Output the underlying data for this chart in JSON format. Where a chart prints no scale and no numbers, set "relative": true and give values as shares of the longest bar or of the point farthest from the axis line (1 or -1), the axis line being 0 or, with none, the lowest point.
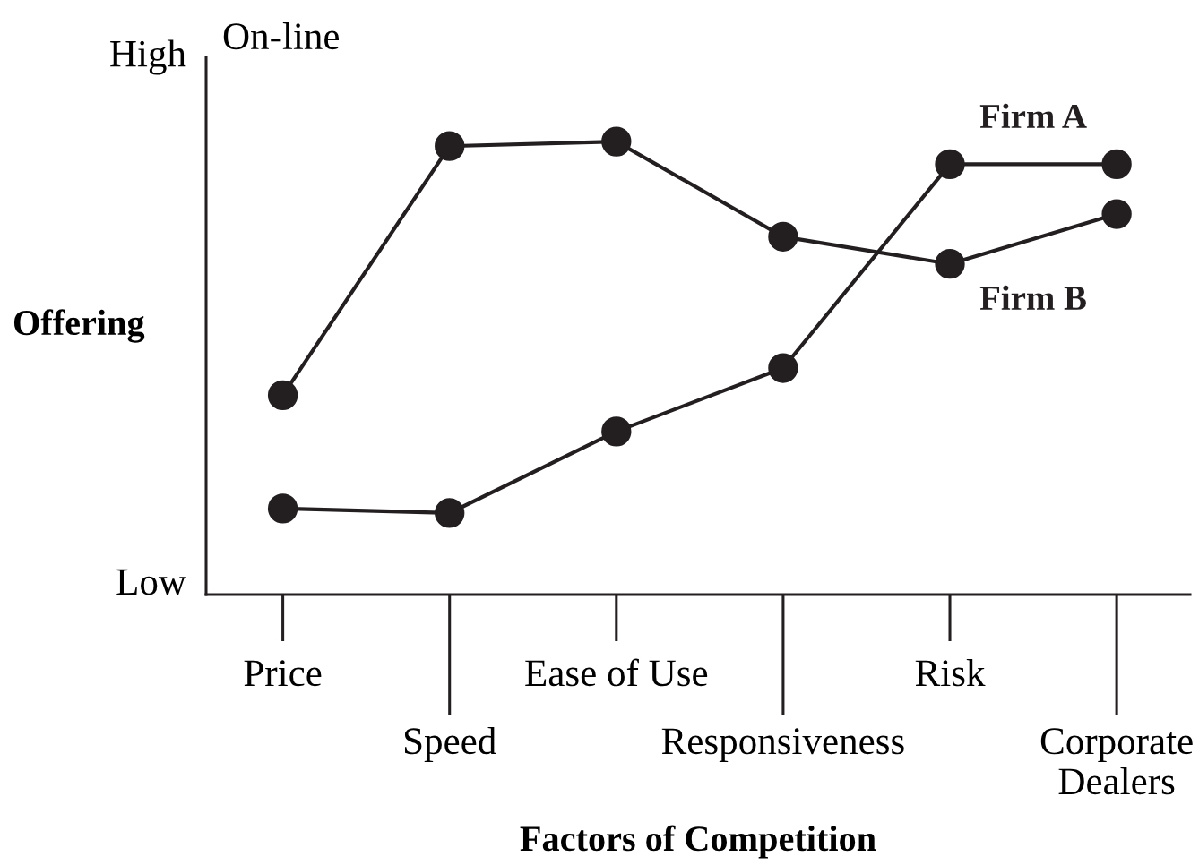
{
  "chart_data": {
    "type": "line",
    "title": "On-line",
    "xlabel": "Factors of Competition",
    "ylabel": "Offering",
    "categories": [
      "Price",
      "Speed",
      "Ease of Use",
      "Responsiveness",
      "Risk",
      "Corporate Dealers"
    ],
    "relative": true,
    "marker": "circle",
    "line_style": "solid",
    "series": [
      {
        "name": "Firm A",
        "color": "#231f20",
        "values": [
          0.19,
          0.18,
          0.36,
          0.5,
          0.95,
          0.95
        ]
      },
      {
        "name": "Firm B",
        "color": "#231f20",
        "values": [
          0.44,
          0.99,
          1,
          0.79,
          0.73,
          0.84
        ]
      }
    ],
    "annotations": [
      "High",
      "Low"
    ]
  }
}
